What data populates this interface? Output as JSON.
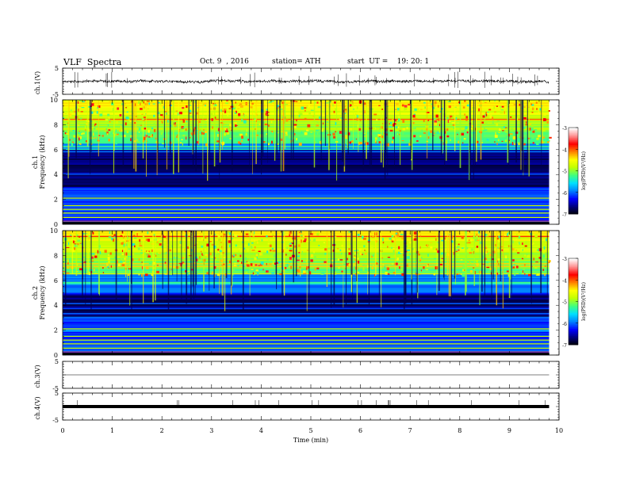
{
  "header": {
    "title": "VLF  Spectra",
    "date": "Oct. 9  , 2016",
    "station": "station= ATH",
    "start": "start  UT =    19: 20: 1"
  },
  "chart_data": [
    {
      "type": "line",
      "panel": "ch1",
      "ylabel": "ch.1(V)",
      "ylim": [
        -5,
        5
      ],
      "yticks": [
        "5",
        "-5"
      ],
      "description_values": {
        "baseline": 0,
        "noise_amplitude": 1
      }
    },
    {
      "type": "heatmap",
      "panel": "spec1",
      "ylabel": "ch.1\nFrequency  (kHz)",
      "ylim": [
        0,
        10
      ],
      "yticks": [
        "0",
        "2",
        "4",
        "6",
        "8",
        "10"
      ],
      "colorbar": {
        "label": "log(PSD)(V²/Hz)",
        "range": [
          -7,
          -3
        ],
        "ticks": [
          "-3",
          "-4",
          "-5",
          "-6",
          "-7"
        ]
      },
      "dark_band_khz": [
        3.0,
        6.0
      ],
      "bright_band_khz": [
        6.5,
        10
      ]
    },
    {
      "type": "heatmap",
      "panel": "spec2",
      "ylabel": "ch.2\nFrequency  (kHz)",
      "ylim": [
        0,
        10
      ],
      "yticks": [
        "0",
        "2",
        "4",
        "6",
        "8",
        "10"
      ],
      "colorbar": {
        "label": "log(PSD)(V²/Hz)",
        "range": [
          -7,
          -3
        ],
        "ticks": [
          "-3",
          "-4",
          "-5",
          "-6",
          "-7"
        ]
      },
      "dark_band_khz": [
        3.0,
        5.0
      ],
      "bright_band_khz": [
        6.5,
        10
      ]
    },
    {
      "type": "line",
      "panel": "ch3",
      "ylabel": "ch.3(V)",
      "ylim": [
        -5,
        5
      ],
      "yticks": [
        "5",
        "-5"
      ],
      "level": 0
    },
    {
      "type": "line",
      "panel": "ch4",
      "ylabel": "ch.4(V)",
      "ylim": [
        -5,
        5
      ],
      "yticks": [
        "5",
        "-5"
      ],
      "level": 0
    }
  ],
  "xaxis": {
    "label": "Time  (min)",
    "range": [
      0,
      10
    ],
    "ticks": [
      "0",
      "1",
      "2",
      "3",
      "4",
      "5",
      "6",
      "7",
      "8",
      "9",
      "10"
    ],
    "data_end": 9.8
  },
  "colors": {
    "axis": "#000000",
    "colormap": [
      "#000000",
      "#00007a",
      "#0000ff",
      "#0080ff",
      "#00e0ff",
      "#40ff80",
      "#c0ff00",
      "#ffff00",
      "#ff8000",
      "#ff0000",
      "#ff9090",
      "#ffffff"
    ]
  }
}
